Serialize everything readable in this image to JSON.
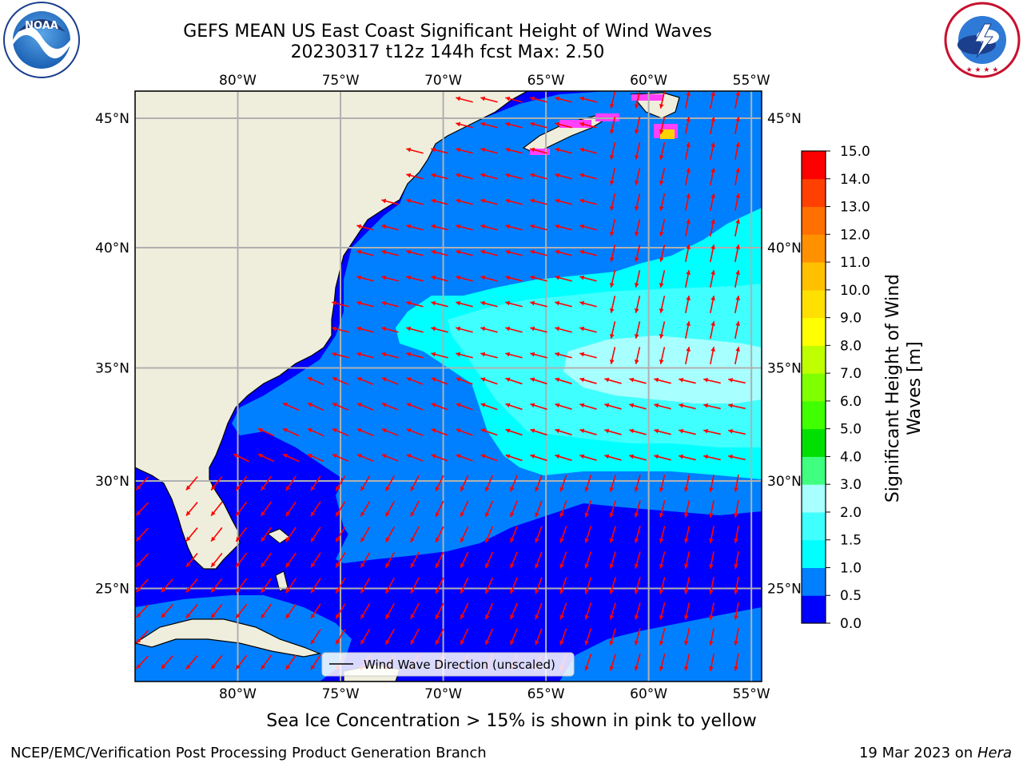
{
  "header": {
    "title_line1": "GEFS MEAN US East Coast Significant Height of Wind Waves",
    "title_line2": "20230317 t12z 144h fcst   Max: 2.50"
  },
  "logos": {
    "left": "NOAA",
    "left_ring": "NATIONAL OCEANIC AND ATMOSPHERIC ADMINISTRATION · U.S. DEPARTMENT OF COMMERCE",
    "right_ring": "NATIONAL WEATHER SERVICE"
  },
  "map": {
    "lon_labels": [
      "80°W",
      "75°W",
      "70°W",
      "65°W",
      "60°W",
      "55°W"
    ],
    "lat_labels": [
      "45°N",
      "40°N",
      "35°N",
      "30°N",
      "25°N"
    ],
    "lon_values": [
      -80,
      -75,
      -70,
      -65,
      -60,
      -55
    ],
    "lat_values": [
      45,
      40,
      35,
      30,
      25
    ],
    "extent": {
      "lon_min": -85,
      "lon_max": -54.5,
      "lat_min": 20.5,
      "lat_max": 46
    },
    "legend_label": "Wind Wave Direction (unscaled)",
    "arrow_color": "#ff0000",
    "land_color": "#efeedc"
  },
  "colorbar": {
    "title_line1": "Significant Height of Wind",
    "title_line2": "Waves [m]",
    "tick_labels": [
      "0.0",
      "0.5",
      "1.0",
      "1.5",
      "2.0",
      "3.0",
      "4.0",
      "5.0",
      "6.0",
      "7.0",
      "8.0",
      "9.0",
      "10.0",
      "11.0",
      "12.0",
      "13.0",
      "14.0",
      "15.0"
    ],
    "colors": [
      "#0000ff",
      "#0080ff",
      "#00ffff",
      "#40ffff",
      "#a8ffff",
      "#40ff80",
      "#00e000",
      "#40ff00",
      "#80ff00",
      "#c0ff00",
      "#ffff00",
      "#ffe000",
      "#ffc000",
      "#ff9000",
      "#ff7000",
      "#ff4000",
      "#ff0000"
    ]
  },
  "chart_data": {
    "type": "heatmap",
    "title": "GEFS MEAN US East Coast Significant Height of Wind Waves",
    "subtitle": "20230317 t12z 144h fcst   Max: 2.50",
    "max_value": 2.5,
    "unit": "m",
    "variable": "Significant Height of Wind Waves",
    "colorbar_bounds": [
      0.0,
      0.5,
      1.0,
      1.5,
      2.0,
      3.0,
      4.0,
      5.0,
      6.0,
      7.0,
      8.0,
      9.0,
      10.0,
      11.0,
      12.0,
      13.0,
      14.0,
      15.0
    ],
    "xlim": [
      -85,
      -54.5
    ],
    "ylim": [
      20.5,
      46
    ],
    "grid": true
  },
  "caption": "Sea Ice Concentration > 15% is shown in pink to yellow",
  "footer": {
    "left": "NCEP/EMC/Verification Post Processing Product Generation Branch",
    "right_date": "19 Mar 2023 on ",
    "right_host": "Hera"
  }
}
